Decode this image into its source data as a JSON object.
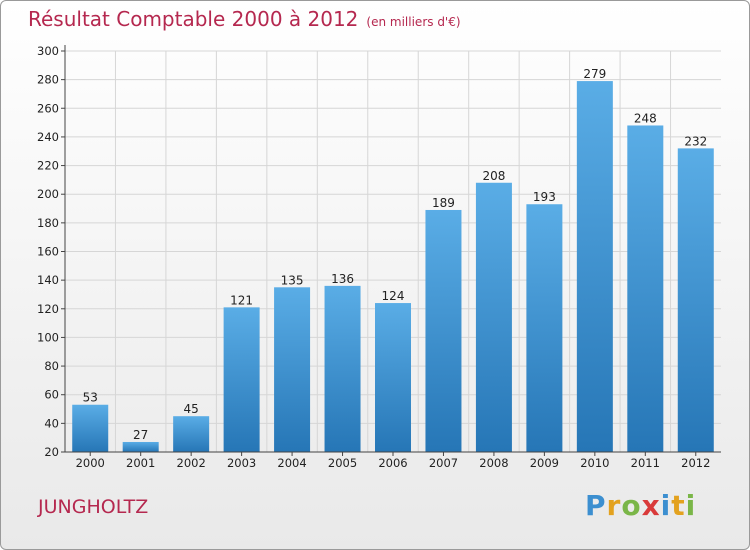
{
  "title": "Résultat Comptable 2000 à 2012",
  "unit": "(en milliers d'€)",
  "commune": "JUNGHOLTZ",
  "logo": "Proxiti",
  "chart_data": {
    "type": "bar",
    "title": "Résultat Comptable 2000 à 2012",
    "ylabel": "en milliers d'€",
    "xlabel": "",
    "categories": [
      "2000",
      "2001",
      "2002",
      "2003",
      "2004",
      "2005",
      "2006",
      "2007",
      "2008",
      "2009",
      "2010",
      "2011",
      "2012"
    ],
    "values": [
      53,
      27,
      45,
      121,
      135,
      136,
      124,
      189,
      208,
      193,
      279,
      248,
      232
    ],
    "ylim": [
      20,
      300
    ],
    "yticks": [
      20,
      40,
      60,
      80,
      100,
      120,
      140,
      160,
      180,
      200,
      220,
      240,
      260,
      280,
      300
    ],
    "grid": true,
    "colors": {
      "bar_light": "#5aade6",
      "bar_dark": "#2676b6",
      "grid": "#d6d6d6",
      "axis": "#444444"
    }
  }
}
